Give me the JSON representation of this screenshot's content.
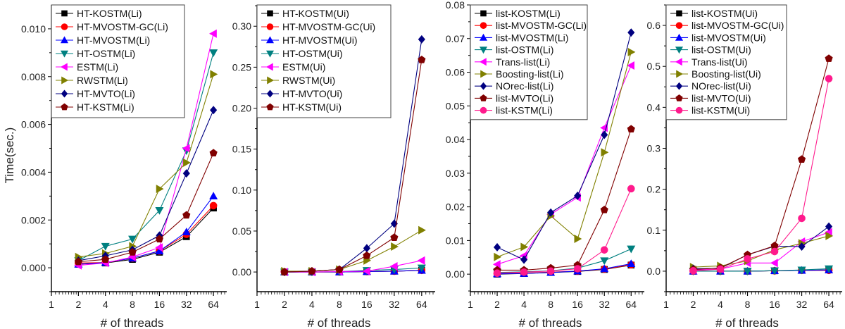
{
  "chart_data": [
    {
      "type": "line",
      "xlabel": "# of threads",
      "ylabel": "Time(sec.)",
      "x_scale": "log2",
      "xlim": [
        1,
        90
      ],
      "xticks": [
        "1",
        "2",
        "4",
        "8",
        "16",
        "32",
        "64"
      ],
      "ylim": [
        -0.001,
        0.011
      ],
      "yticks": [
        "0.000",
        "0.002",
        "0.004",
        "0.006",
        "0.008",
        "0.010"
      ],
      "legend": "top-left",
      "x": [
        2,
        4,
        8,
        16,
        32,
        64
      ],
      "series": [
        {
          "name": "HT-KOSTM(Li)",
          "color": "#000000",
          "marker": "square",
          "values": [
            0.00015,
            0.0002,
            0.00035,
            0.00065,
            0.0013,
            0.0025
          ]
        },
        {
          "name": "HT-MVOSTM-GC(Li)",
          "color": "#ff0000",
          "marker": "circle",
          "values": [
            0.0002,
            0.00022,
            0.0004,
            0.0007,
            0.0014,
            0.0026
          ]
        },
        {
          "name": "HT-MVOSTM(Li)",
          "color": "#0000ff",
          "marker": "triangle-up",
          "values": [
            0.00015,
            0.00022,
            0.0004,
            0.0007,
            0.0015,
            0.003
          ]
        },
        {
          "name": "HT-OSTM(Li)",
          "color": "#008080",
          "marker": "triangle-down",
          "values": [
            0.0003,
            0.0009,
            0.0012,
            0.0024,
            0.0049,
            0.009
          ]
        },
        {
          "name": "ESTM(Li)",
          "color": "#ff00ff",
          "marker": "triangle-left",
          "values": [
            0.0001,
            0.0002,
            0.00045,
            0.00085,
            0.005,
            0.0098
          ]
        },
        {
          "name": "RWSTM(Li)",
          "color": "#808000",
          "marker": "triangle-right",
          "values": [
            0.00045,
            0.0006,
            0.0009,
            0.0033,
            0.0044,
            0.0081
          ]
        },
        {
          "name": "HT-MVTO(Li)",
          "color": "#000080",
          "marker": "diamond",
          "values": [
            0.0003,
            0.0005,
            0.00075,
            0.00135,
            0.00395,
            0.0066
          ]
        },
        {
          "name": "HT-KSTM(Li)",
          "color": "#800000",
          "marker": "pentagon",
          "values": [
            0.00025,
            0.00035,
            0.00065,
            0.0012,
            0.0022,
            0.0048
          ]
        }
      ]
    },
    {
      "type": "line",
      "xlabel": "# of threads",
      "ylabel": "",
      "x_scale": "log2",
      "xlim": [
        1,
        90
      ],
      "xticks": [
        "1",
        "2",
        "4",
        "8",
        "16",
        "32",
        "64"
      ],
      "ylim": [
        -0.024,
        0.326
      ],
      "yticks": [
        "0.00",
        "0.05",
        "0.10",
        "0.15",
        "0.20",
        "0.25",
        "0.30"
      ],
      "legend": "top-left",
      "x": [
        2,
        4,
        8,
        16,
        32,
        64
      ],
      "series": [
        {
          "name": "HT-KOSTM(Ui)",
          "color": "#000000",
          "marker": "square",
          "values": [
            0,
            0,
            0,
            0.0005,
            0.001,
            0.002
          ]
        },
        {
          "name": "HT-MVOSTM-GC(Ui)",
          "color": "#ff0000",
          "marker": "circle",
          "values": [
            0,
            0,
            0,
            0.0005,
            0.001,
            0.002
          ]
        },
        {
          "name": "HT-MVOSTM(Ui)",
          "color": "#0000ff",
          "marker": "triangle-up",
          "values": [
            0,
            0,
            0,
            0.0005,
            0.001,
            0.002
          ]
        },
        {
          "name": "HT-OSTM(Ui)",
          "color": "#008080",
          "marker": "triangle-down",
          "values": [
            0,
            0,
            0.0005,
            0.002,
            0.003,
            0.005
          ]
        },
        {
          "name": "ESTM(Ui)",
          "color": "#ff00ff",
          "marker": "triangle-left",
          "values": [
            0,
            0,
            0.0005,
            0.001,
            0.007,
            0.014
          ]
        },
        {
          "name": "RWSTM(Ui)",
          "color": "#808000",
          "marker": "triangle-right",
          "values": [
            0.001,
            0.001,
            0.003,
            0.014,
            0.031,
            0.051
          ]
        },
        {
          "name": "HT-MVTO(Ui)",
          "color": "#000080",
          "marker": "diamond",
          "values": [
            0,
            0.001,
            0.003,
            0.029,
            0.059,
            0.284
          ]
        },
        {
          "name": "HT-KSTM(Ui)",
          "color": "#800000",
          "marker": "pentagon",
          "values": [
            0,
            0.001,
            0.003,
            0.02,
            0.042,
            0.259
          ]
        }
      ]
    },
    {
      "type": "line",
      "xlabel": "# of threads",
      "ylabel": "",
      "x_scale": "log2",
      "xlim": [
        1,
        90
      ],
      "xticks": [
        "1",
        "2",
        "4",
        "8",
        "16",
        "32",
        "64"
      ],
      "ylim": [
        -0.0052,
        0.08
      ],
      "yticks": [
        "0.00",
        "0.01",
        "0.02",
        "0.03",
        "0.04",
        "0.05",
        "0.06",
        "0.07",
        "0.08"
      ],
      "legend": "top-left",
      "x": [
        2,
        4,
        8,
        16,
        32,
        64
      ],
      "series": [
        {
          "name": "list-KOSTM(Li)",
          "color": "#000000",
          "marker": "square",
          "values": [
            0,
            0.0002,
            0.0005,
            0.0008,
            0.0014,
            0.0027
          ]
        },
        {
          "name": "list-MVOSTM-GC(Li)",
          "color": "#ff0000",
          "marker": "circle",
          "values": [
            0.0002,
            0.0003,
            0.0006,
            0.0009,
            0.0015,
            0.0028
          ]
        },
        {
          "name": "list-MVOSTM(Li)",
          "color": "#0000ff",
          "marker": "triangle-up",
          "values": [
            0.0001,
            0.0002,
            0.0005,
            0.0009,
            0.0016,
            0.0031
          ]
        },
        {
          "name": "list-OSTM(Li)",
          "color": "#008080",
          "marker": "triangle-down",
          "values": [
            0.0005,
            0.0007,
            0.001,
            0.0018,
            0.004,
            0.0075
          ]
        },
        {
          "name": "Trans-list(Li)",
          "color": "#ff00ff",
          "marker": "triangle-left",
          "values": [
            0.0029,
            0.0055,
            0.0178,
            0.0228,
            0.0435,
            0.062
          ]
        },
        {
          "name": "Boosting-list(Li)",
          "color": "#808000",
          "marker": "triangle-right",
          "values": [
            0.0051,
            0.0081,
            0.0173,
            0.0105,
            0.0362,
            0.066
          ]
        },
        {
          "name": "NOrec-list(Li)",
          "color": "#000080",
          "marker": "diamond",
          "values": [
            0.008,
            0.0043,
            0.0183,
            0.0233,
            0.0414,
            0.0718
          ]
        },
        {
          "name": "list-MVTO(Li)",
          "color": "#800000",
          "marker": "pentagon",
          "values": [
            0.0012,
            0.0012,
            0.0018,
            0.0027,
            0.0191,
            0.0431
          ]
        },
        {
          "name": "list-KSTM(Li)",
          "color": "#ff1a8c",
          "marker": "circle",
          "values": [
            0.0003,
            0.0006,
            0.0009,
            0.0016,
            0.0072,
            0.0254
          ]
        }
      ]
    },
    {
      "type": "line",
      "xlabel": "# of threads",
      "ylabel": "",
      "x_scale": "log2",
      "xlim": [
        1,
        90
      ],
      "xticks": [
        "1",
        "2",
        "4",
        "8",
        "16",
        "32",
        "64"
      ],
      "ylim": [
        -0.05,
        0.65
      ],
      "yticks": [
        "0.0",
        "0.1",
        "0.2",
        "0.3",
        "0.4",
        "0.5",
        "0.6"
      ],
      "legend": "top-left",
      "x": [
        2,
        4,
        8,
        16,
        32,
        64
      ],
      "series": [
        {
          "name": "list-KOSTM(Ui)",
          "color": "#000000",
          "marker": "square",
          "values": [
            0,
            0,
            0,
            0.001,
            0.002,
            0.003
          ]
        },
        {
          "name": "list-MVOSTM-GC(Ui)",
          "color": "#ff0000",
          "marker": "circle",
          "values": [
            0,
            0,
            0,
            0.001,
            0.002,
            0.002
          ]
        },
        {
          "name": "list-MVOSTM(Ui)",
          "color": "#0000ff",
          "marker": "triangle-up",
          "values": [
            0,
            0,
            0,
            0.001,
            0.002,
            0.003
          ]
        },
        {
          "name": "list-OSTM(Ui)",
          "color": "#008080",
          "marker": "triangle-down",
          "values": [
            0,
            0,
            0,
            0.001,
            0.003,
            0.006
          ]
        },
        {
          "name": "Trans-list(Ui)",
          "color": "#ff00ff",
          "marker": "triangle-left",
          "values": [
            0.003,
            0.005,
            0.02,
            0.02,
            0.072,
            0.095
          ]
        },
        {
          "name": "Boosting-list(Ui)",
          "color": "#808000",
          "marker": "triangle-right",
          "values": [
            0.01,
            0.013,
            0.025,
            0.052,
            0.068,
            0.086
          ]
        },
        {
          "name": "NOrec-list(Ui)",
          "color": "#000080",
          "marker": "diamond",
          "values": [
            0.006,
            0.007,
            0.04,
            0.061,
            0.06,
            0.109
          ]
        },
        {
          "name": "list-MVTO(Ui)",
          "color": "#800000",
          "marker": "pentagon",
          "values": [
            0.004,
            0.008,
            0.04,
            0.062,
            0.273,
            0.519
          ]
        },
        {
          "name": "list-KSTM(Ui)",
          "color": "#ff1a8c",
          "marker": "circle",
          "values": [
            0.001,
            0.005,
            0.03,
            0.048,
            0.129,
            0.47
          ]
        }
      ]
    }
  ]
}
